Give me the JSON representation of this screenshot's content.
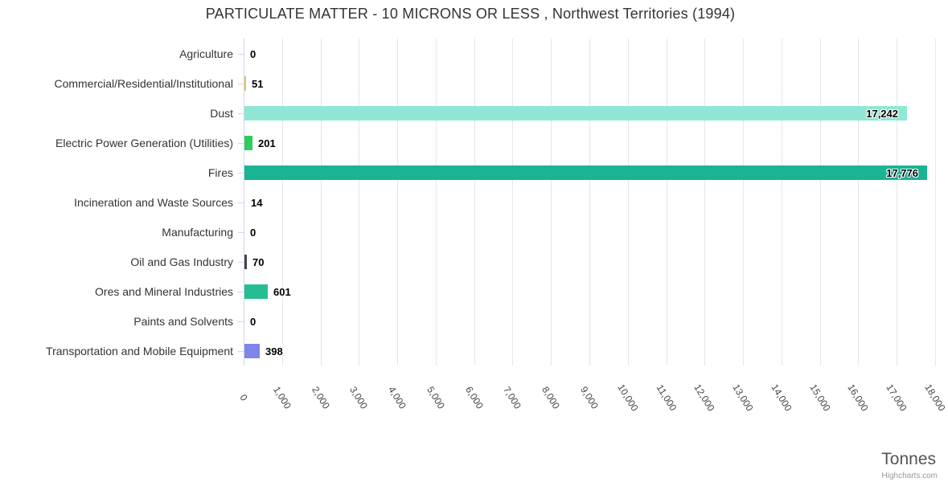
{
  "page": {
    "credits_label": "Highcharts.com"
  },
  "chart_data": {
    "type": "bar",
    "orientation": "horizontal",
    "title": "PARTICULATE MATTER - 10 MICRONS OR LESS , Northwest Territories (1994)",
    "xlabel": "Tonnes",
    "legend": "none",
    "grid": true,
    "categories": [
      "Agriculture",
      "Commercial/Residential/Institutional",
      "Dust",
      "Electric Power Generation (Utilities)",
      "Fires",
      "Incineration and Waste Sources",
      "Manufacturing",
      "Oil and Gas Industry",
      "Ores and Mineral Industries",
      "Paints and Solvents",
      "Transportation and Mobile Equipment"
    ],
    "values": [
      0,
      51,
      17242,
      201,
      17776,
      14,
      0,
      70,
      601,
      0,
      398
    ],
    "value_labels": [
      "0",
      "51",
      "17,242",
      "201",
      "17,776",
      "14",
      "0",
      "70",
      "601",
      "0",
      "398"
    ],
    "bar_colors": [
      "",
      "#e8c63f",
      "#90e6d4",
      "#2ecc5f",
      "#1ab394",
      "",
      "",
      "#434348",
      "#27bd92",
      "",
      "#8085e9"
    ],
    "axis": {
      "min": 0,
      "max": 18000,
      "tick_interval": 1000,
      "tick_labels": [
        "0",
        "1,000",
        "2,000",
        "3,000",
        "4,000",
        "5,000",
        "6,000",
        "7,000",
        "8,000",
        "9,000",
        "10,000",
        "11,000",
        "12,000",
        "13,000",
        "14,000",
        "15,000",
        "16,000",
        "17,000",
        "18,000"
      ]
    },
    "colors": {
      "background": "#ffffff",
      "axis_line": "#ccd6eb",
      "gridline": "#e6e6e6",
      "title": "#333333",
      "category_label": "#333333",
      "value_label": "#000000",
      "tick_label": "#444444",
      "axis_title": "#555555",
      "credits": "#999999"
    }
  }
}
